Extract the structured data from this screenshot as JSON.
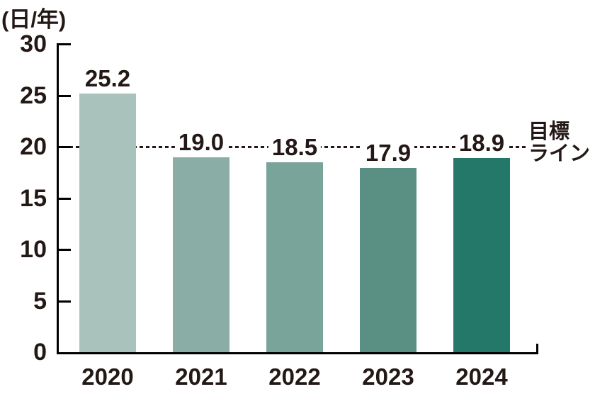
{
  "chart_data": {
    "type": "bar",
    "unit_label": "(日/年)",
    "categories": [
      "2020",
      "2021",
      "2022",
      "2023",
      "2024"
    ],
    "values": [
      25.2,
      19.0,
      18.5,
      17.9,
      18.9
    ],
    "value_labels": [
      "25.2",
      "19.0",
      "18.5",
      "17.9",
      "18.9"
    ],
    "bar_colors": [
      "#a9c3bc",
      "#8aada5",
      "#79a499",
      "#5a9084",
      "#237869"
    ],
    "yticks": [
      0,
      5,
      10,
      15,
      20,
      25,
      30
    ],
    "ylim": [
      0,
      30
    ],
    "target_line": {
      "value": 20,
      "label_lines": [
        "目標",
        "ライン"
      ]
    },
    "text_color": "#231815",
    "axis_color": "#000000",
    "grid": false,
    "legend": false,
    "xlabel": "",
    "ylabel": ""
  }
}
